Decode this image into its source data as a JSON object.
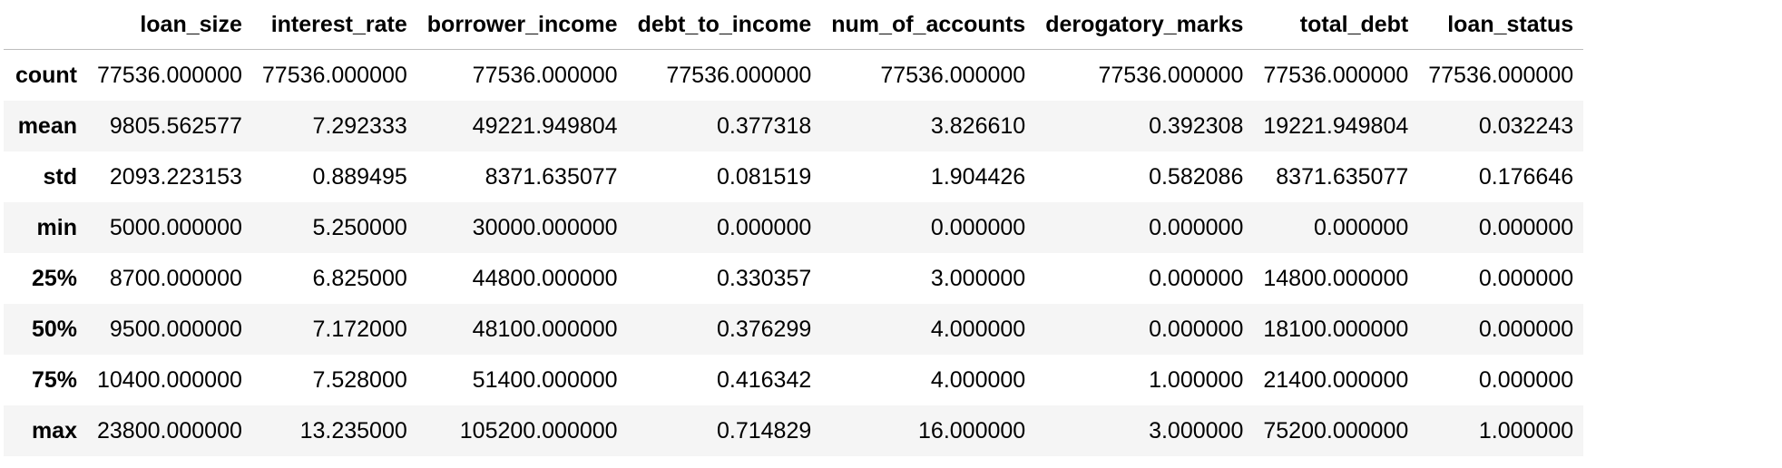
{
  "table": {
    "columns": [
      "loan_size",
      "interest_rate",
      "borrower_income",
      "debt_to_income",
      "num_of_accounts",
      "derogatory_marks",
      "total_debt",
      "loan_status"
    ],
    "rows": [
      {
        "label": "count",
        "values": [
          "77536.000000",
          "77536.000000",
          "77536.000000",
          "77536.000000",
          "77536.000000",
          "77536.000000",
          "77536.000000",
          "77536.000000"
        ]
      },
      {
        "label": "mean",
        "values": [
          "9805.562577",
          "7.292333",
          "49221.949804",
          "0.377318",
          "3.826610",
          "0.392308",
          "19221.949804",
          "0.032243"
        ]
      },
      {
        "label": "std",
        "values": [
          "2093.223153",
          "0.889495",
          "8371.635077",
          "0.081519",
          "1.904426",
          "0.582086",
          "8371.635077",
          "0.176646"
        ]
      },
      {
        "label": "min",
        "values": [
          "5000.000000",
          "5.250000",
          "30000.000000",
          "0.000000",
          "0.000000",
          "0.000000",
          "0.000000",
          "0.000000"
        ]
      },
      {
        "label": "25%",
        "values": [
          "8700.000000",
          "6.825000",
          "44800.000000",
          "0.330357",
          "3.000000",
          "0.000000",
          "14800.000000",
          "0.000000"
        ]
      },
      {
        "label": "50%",
        "values": [
          "9500.000000",
          "7.172000",
          "48100.000000",
          "0.376299",
          "4.000000",
          "0.000000",
          "18100.000000",
          "0.000000"
        ]
      },
      {
        "label": "75%",
        "values": [
          "10400.000000",
          "7.528000",
          "51400.000000",
          "0.416342",
          "4.000000",
          "1.000000",
          "21400.000000",
          "0.000000"
        ]
      },
      {
        "label": "max",
        "values": [
          "23800.000000",
          "13.235000",
          "105200.000000",
          "0.714829",
          "16.000000",
          "3.000000",
          "75200.000000",
          "1.000000"
        ]
      }
    ]
  },
  "colors": {
    "stripe": "#f5f5f5",
    "header_rule": "#bdbdbd",
    "text": "#000000"
  }
}
